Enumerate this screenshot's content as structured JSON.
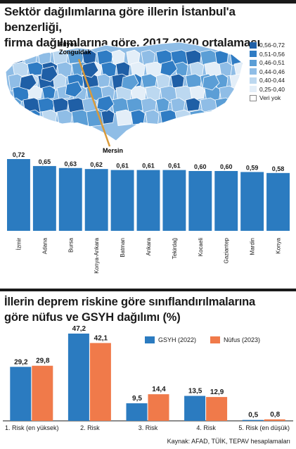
{
  "header": {
    "title_line1": "Sektör dağılımlarına göre illerin İstanbul'a benzerliği,",
    "title_line2": "firma dağılımlarına göre, 2017-2020 ortalaması"
  },
  "map": {
    "label_top": "Filyos",
    "label_top2": "Zonguldak",
    "label_bottom": "Mersin",
    "legend": [
      {
        "label": "0,56-0,72",
        "color": "#1f5fa6"
      },
      {
        "label": "0,51-0,56",
        "color": "#2f7cc4"
      },
      {
        "label": "0,46-0,51",
        "color": "#5b9ed6"
      },
      {
        "label": "0,44-0,46",
        "color": "#8fbde6"
      },
      {
        "label": "0,40-0,44",
        "color": "#bcd8f0"
      },
      {
        "label": "0,25-0,40",
        "color": "#e3eef8"
      },
      {
        "label": "Veri yok",
        "color": "#ffffff"
      }
    ],
    "line_color": "#d99a3a"
  },
  "chart_data": [
    {
      "type": "bar",
      "categories": [
        "İzmir",
        "Adana",
        "Bursa",
        "Konya-Ankara",
        "Batman",
        "Ankara",
        "Tekirdağ",
        "Kocaeli",
        "Gaziantep",
        "Mardin",
        "Konya"
      ],
      "values": [
        0.72,
        0.65,
        0.63,
        0.62,
        0.61,
        0.61,
        0.61,
        0.6,
        0.6,
        0.59,
        0.58
      ],
      "value_labels": [
        "0,72",
        "0,65",
        "0,63",
        "0,62",
        "0,61",
        "0,61",
        "0,61",
        "0,60",
        "0,60",
        "0,59",
        "0,58"
      ],
      "color": "#2b7bc0"
    },
    {
      "type": "bar",
      "title": "İllerin deprem riskine göre sınıflandırılmalarına göre nüfus ve GSYH dağılımı (%)",
      "categories": [
        "1. Risk (en yüksek)",
        "2. Risk",
        "3. Risk",
        "4. Risk",
        "5. Risk (en düşük)"
      ],
      "series": [
        {
          "name": "GSYH (2022)",
          "values": [
            29.2,
            47.2,
            9.5,
            13.5,
            0.5
          ],
          "labels": [
            "29,2",
            "47,2",
            "9,5",
            "13,5",
            "0,5"
          ],
          "color": "#2b7bc0"
        },
        {
          "name": "Nüfus (2023)",
          "values": [
            29.8,
            42.1,
            14.4,
            12.9,
            0.8
          ],
          "labels": [
            "29,8",
            "42,1",
            "14,4",
            "12,9",
            "0,8"
          ],
          "color": "#f07a4a"
        }
      ]
    }
  ],
  "section2": {
    "title_line1": "İllerin deprem riskine göre sınıflandırılmalarına",
    "title_line2": "göre nüfus ve GSYH dağılımı (%)"
  },
  "source": "Kaynak: AFAD, TÜİK, TEPAV hesaplamaları"
}
